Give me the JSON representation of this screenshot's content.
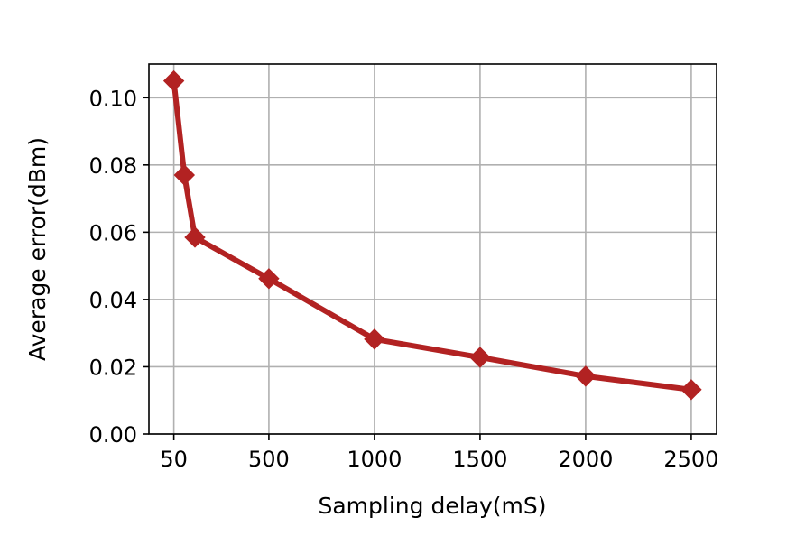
{
  "chart_data": {
    "type": "line",
    "xlabel": "Sampling delay(mS)",
    "ylabel": "Average error(dBm)",
    "xlim": [
      -68,
      2620
    ],
    "ylim": [
      0,
      0.11
    ],
    "xticks": [
      50,
      500,
      1000,
      1500,
      2000,
      2500
    ],
    "xtick_labels": [
      "50",
      "500",
      "1000",
      "1500",
      "2000",
      "2500"
    ],
    "yticks": [
      0.0,
      0.02,
      0.04,
      0.06,
      0.08,
      0.1
    ],
    "ytick_labels": [
      "0.00",
      "0.02",
      "0.04",
      "0.06",
      "0.08",
      "0.10"
    ],
    "grid": true,
    "series": [
      {
        "color": "#b22222",
        "marker": "diamond",
        "x": [
          50,
          100,
          150,
          500,
          1000,
          1500,
          2000,
          2500
        ],
        "y": [
          0.105,
          0.077,
          0.0585,
          0.0462,
          0.0282,
          0.0228,
          0.0172,
          0.0132
        ]
      }
    ]
  }
}
